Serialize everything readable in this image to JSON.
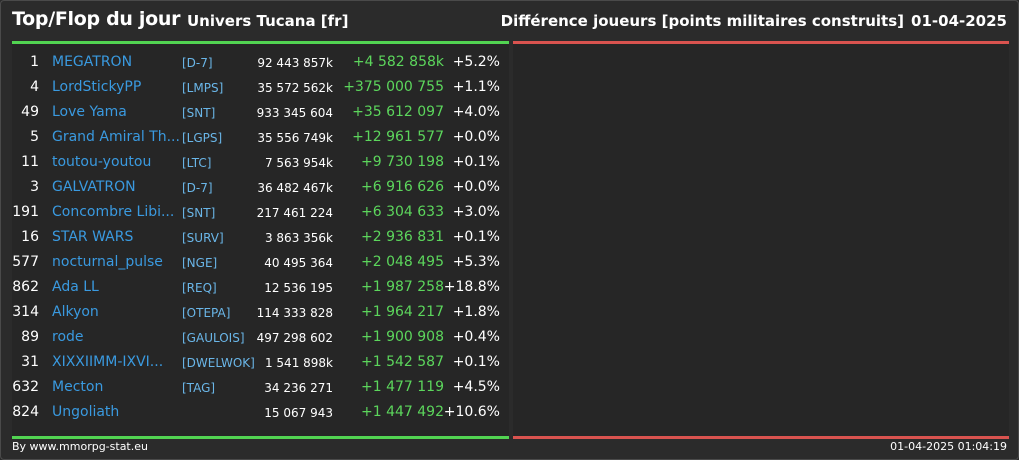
{
  "header": {
    "title": "Top/Flop du jour",
    "universe": "Univers Tucana [fr]",
    "metric": "Différence joueurs [points militaires construits]",
    "date": "01-04-2025"
  },
  "footer": {
    "credit": "By www.mmorpg-stat.eu",
    "timestamp": "01-04-2025 01:04:19"
  },
  "colors": {
    "top_accent": "#52d452",
    "flop_accent": "#d9534f",
    "name_color": "#3a9ae0",
    "gain_color": "#5cd65c"
  },
  "top": [
    {
      "rank": "1",
      "name": "MEGATRON",
      "alliance": "[D-7]",
      "points": "92 443 857k",
      "diff": "+4 582 858k",
      "pct": "+5.2%"
    },
    {
      "rank": "4",
      "name": "LordStickyPP",
      "alliance": "[LMPS]",
      "points": "35 572 562k",
      "diff": "+375 000 755",
      "pct": "+1.1%"
    },
    {
      "rank": "49",
      "name": "Love Yama",
      "alliance": "[SNT]",
      "points": "933 345 604",
      "diff": "+35 612 097",
      "pct": "+4.0%"
    },
    {
      "rank": "5",
      "name": "Grand Amiral Th...",
      "alliance": "[LGPS]",
      "points": "35 556 749k",
      "diff": "+12 961 577",
      "pct": "+0.0%"
    },
    {
      "rank": "11",
      "name": "toutou-youtou",
      "alliance": "[LTC]",
      "points": "7 563 954k",
      "diff": "+9 730 198",
      "pct": "+0.1%"
    },
    {
      "rank": "3",
      "name": "GALVATRON",
      "alliance": "[D-7]",
      "points": "36 482 467k",
      "diff": "+6 916 626",
      "pct": "+0.0%"
    },
    {
      "rank": "191",
      "name": "Concombre Libi...",
      "alliance": "[SNT]",
      "points": "217 461 224",
      "diff": "+6 304 633",
      "pct": "+3.0%"
    },
    {
      "rank": "16",
      "name": "STAR WARS",
      "alliance": "[SURV]",
      "points": "3 863 356k",
      "diff": "+2 936 831",
      "pct": "+0.1%"
    },
    {
      "rank": "577",
      "name": "nocturnal_pulse",
      "alliance": "[NGE]",
      "points": "40 495 364",
      "diff": "+2 048 495",
      "pct": "+5.3%"
    },
    {
      "rank": "862",
      "name": "Ada LL",
      "alliance": "[REQ]",
      "points": "12 536 195",
      "diff": "+1 987 258",
      "pct": "+18.8%"
    },
    {
      "rank": "314",
      "name": "Alkyon",
      "alliance": "[OTEPA]",
      "points": "114 333 828",
      "diff": "+1 964 217",
      "pct": "+1.8%"
    },
    {
      "rank": "89",
      "name": "rode",
      "alliance": "[GAULOIS]",
      "points": "497 298 602",
      "diff": "+1 900 908",
      "pct": "+0.4%"
    },
    {
      "rank": "31",
      "name": "XIXXIIMM-IXVI...",
      "alliance": "[DWELWOK]",
      "points": "1 541 898k",
      "diff": "+1 542 587",
      "pct": "+0.1%"
    },
    {
      "rank": "632",
      "name": "Mecton",
      "alliance": "[TAG]",
      "points": "34 236 271",
      "diff": "+1 477 119",
      "pct": "+4.5%"
    },
    {
      "rank": "824",
      "name": "Ungoliath",
      "alliance": "",
      "points": "15 067 943",
      "diff": "+1 447 492",
      "pct": "+10.6%"
    }
  ]
}
